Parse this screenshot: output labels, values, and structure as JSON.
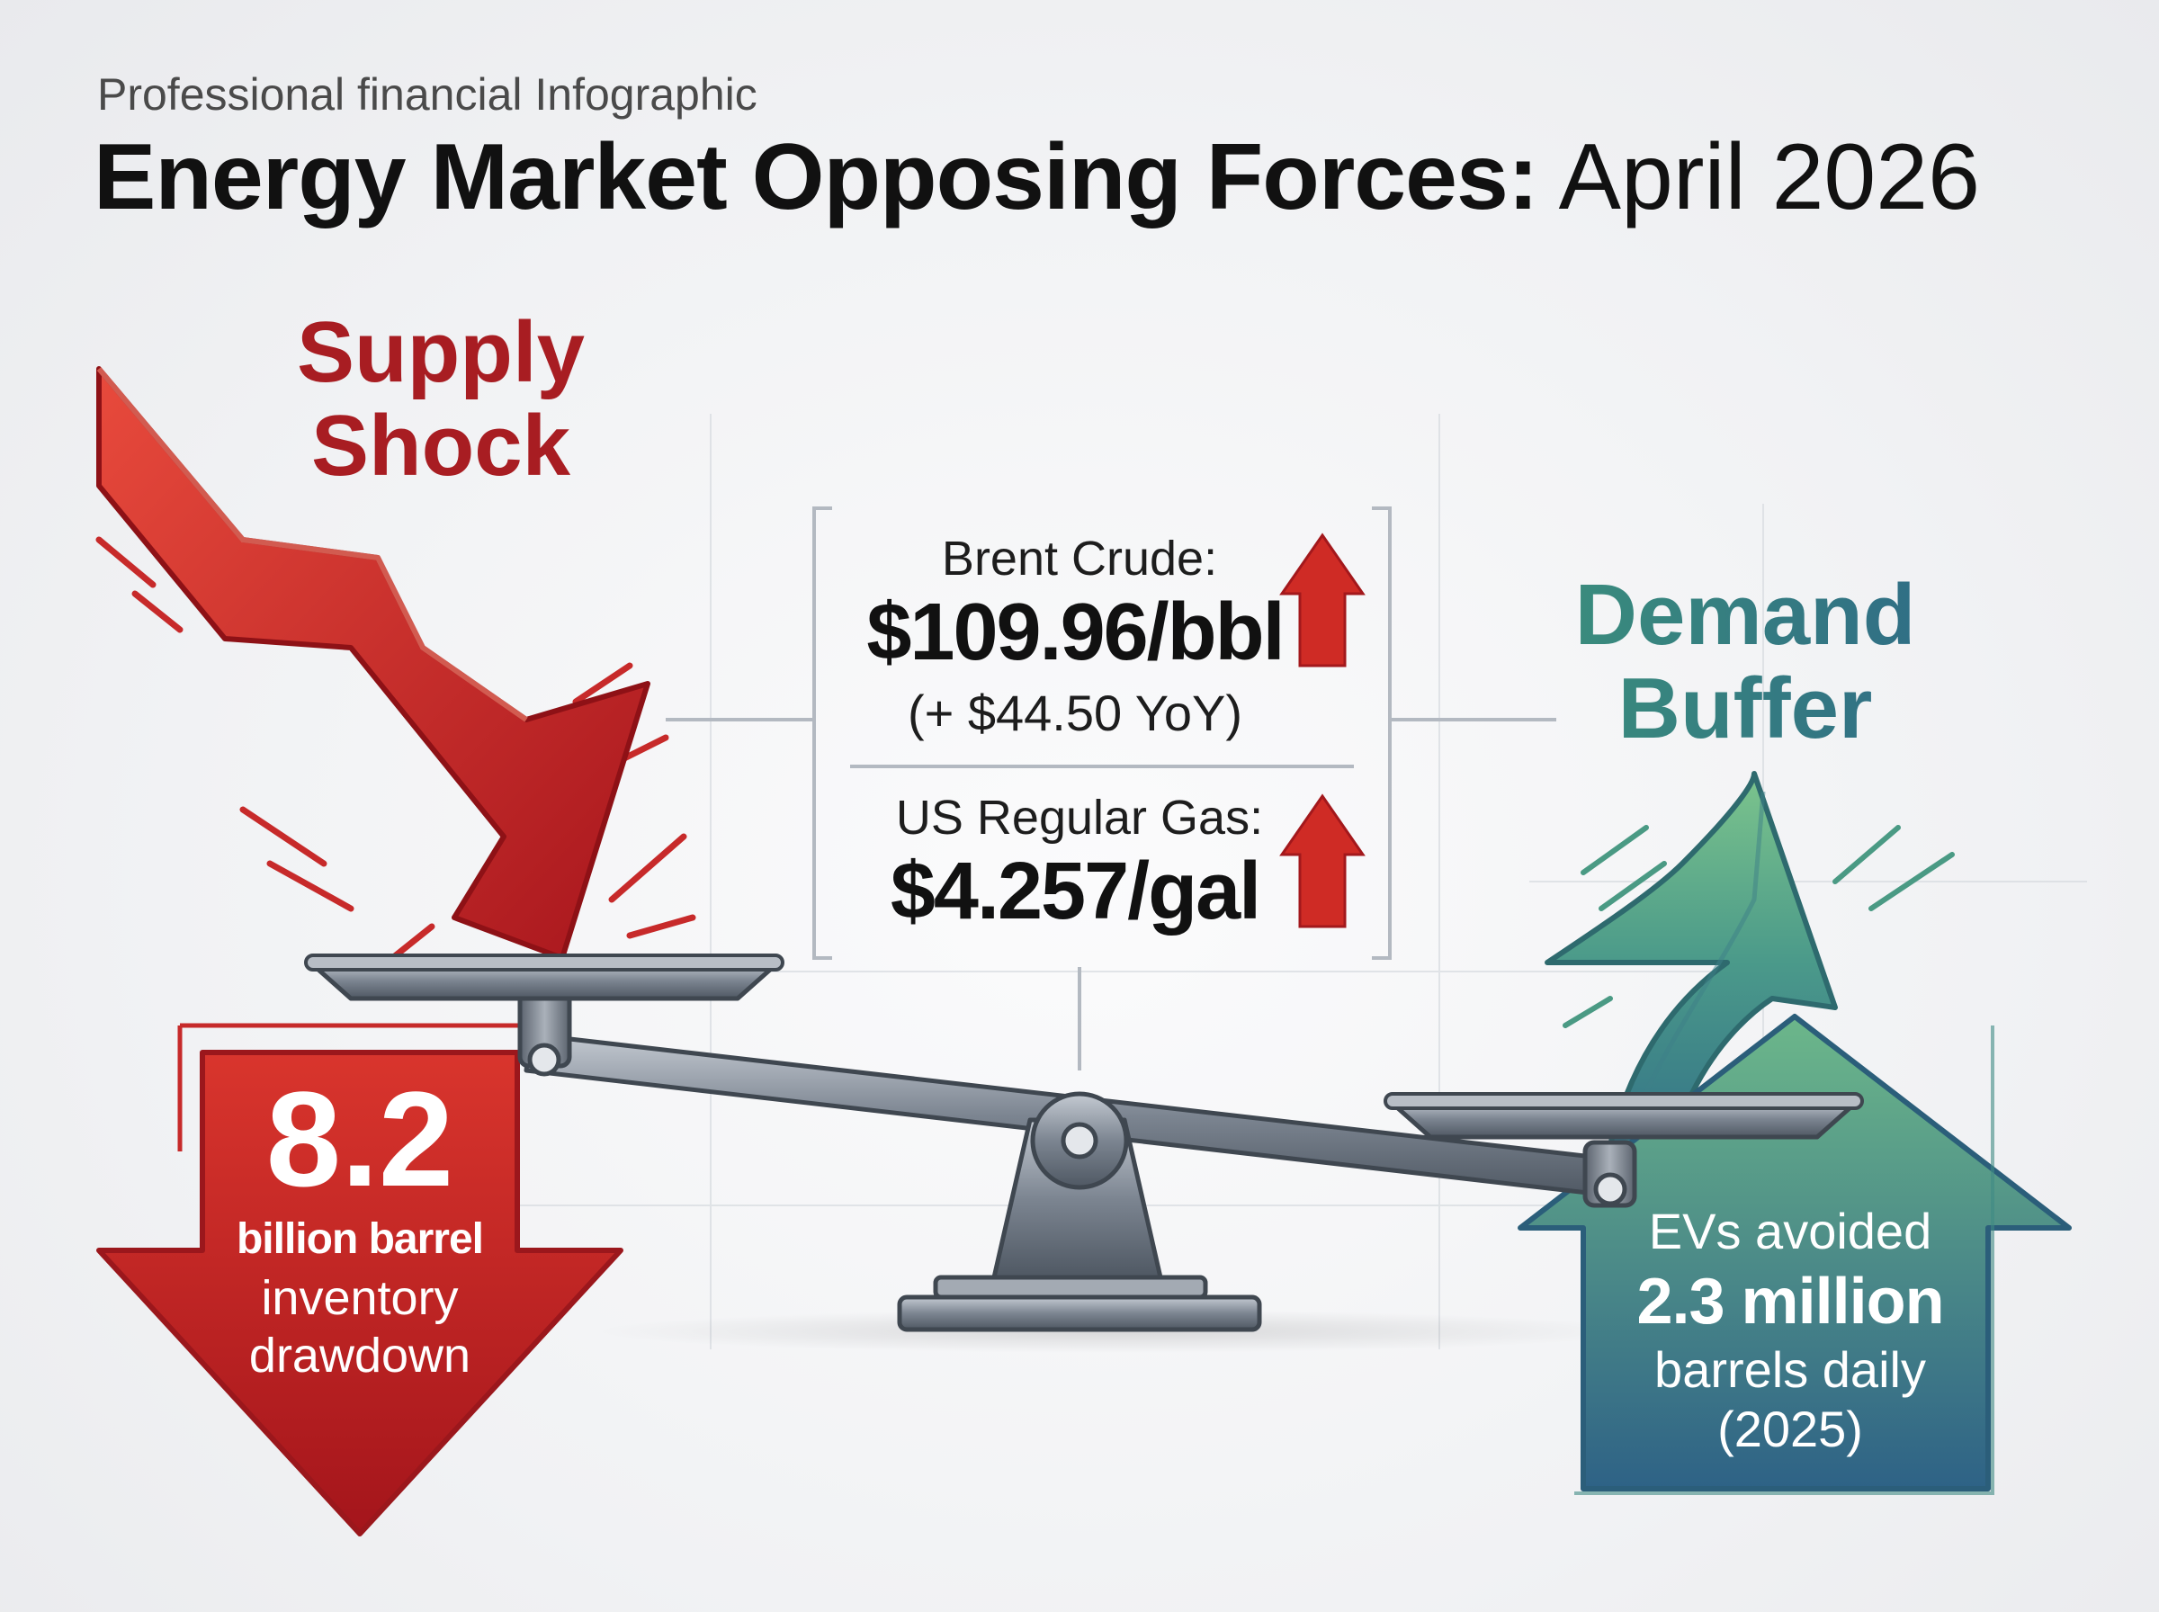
{
  "header": {
    "subtitle": "Professional financial Infographic",
    "title_bold": "Energy Market Opposing Forces:",
    "title_rest": "April 2026"
  },
  "supply": {
    "title": "Supply Shock"
  },
  "demand": {
    "title": "Demand Buffer"
  },
  "prices": {
    "brent_label": "Brent Crude:",
    "brent_value": "$109.96/bbl",
    "brent_change": "(+ $44.50 YoY)",
    "gas_label": "US Regular Gas:",
    "gas_value": "$4.257/gal"
  },
  "inventory": {
    "value": "8.2",
    "line1": "billion barrel",
    "line2": "inventory",
    "line3": "drawdown"
  },
  "evs": {
    "line1": "EVs avoided",
    "line2": "2.3 million",
    "line3": "barrels daily",
    "line4": "(2025)"
  },
  "colors": {
    "supply_red": "#c62a2a",
    "demand_green": "#5fae7f",
    "demand_blue": "#2f6b86",
    "scale_gray": "#6b7480"
  },
  "icons": [
    "down-arrow-icon",
    "up-arrow-icon",
    "balance-scale-icon"
  ]
}
